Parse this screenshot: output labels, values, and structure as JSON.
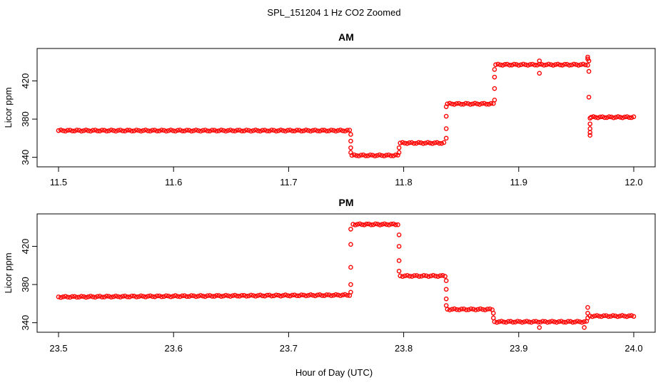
{
  "title": "SPL_151204  1 Hz CO2 Zoomed",
  "xlabel": "Hour of Day (UTC)",
  "colors": {
    "points": "#ff0000",
    "axis": "#000000"
  },
  "chart_data": [
    {
      "type": "scatter",
      "title": "AM",
      "ylabel": "Licor ppm",
      "xlim": [
        11.5,
        12.0
      ],
      "ylim": [
        336,
        448
      ],
      "xticks": [
        "11.5",
        "11.6",
        "11.7",
        "11.8",
        "11.9",
        "12.0"
      ],
      "yticks": [
        "340",
        "380",
        "420"
      ],
      "grid": false,
      "series": [
        {
          "segments": [
            {
              "x0": 11.5,
              "x1": 11.753,
              "y": 368
            },
            {
              "x0": 11.755,
              "x1": 11.795,
              "y": 342
            },
            {
              "x0": 11.797,
              "x1": 11.835,
              "y": 355
            },
            {
              "x0": 11.838,
              "x1": 11.878,
              "y": 396
            },
            {
              "x0": 11.88,
              "x1": 11.96,
              "y": 437
            },
            {
              "x0": 11.963,
              "x1": 12.0,
              "y": 382
            }
          ],
          "transitions": [
            {
              "x": 11.754,
              "y": [
                364,
                357,
                350,
                345
              ]
            },
            {
              "x": 11.796,
              "y": [
                345,
                350
              ]
            },
            {
              "x": 11.837,
              "y": [
                360,
                370,
                383,
                393
              ]
            },
            {
              "x": 11.879,
              "y": [
                400,
                412,
                424,
                432
              ]
            },
            {
              "x": 11.961,
              "y": [
                441,
                430,
                403
              ]
            },
            {
              "x": 11.962,
              "y": [
                381,
                375,
                370,
                366,
                363
              ]
            }
          ],
          "outliers": [
            {
              "x": 11.918,
              "y": 428
            },
            {
              "x": 11.918,
              "y": 441
            },
            {
              "x": 11.96,
              "y": 443
            },
            {
              "x": 11.96,
              "y": 445
            }
          ]
        }
      ]
    },
    {
      "type": "scatter",
      "title": "PM",
      "ylabel": "Licor ppm",
      "xlim": [
        23.5,
        24.0
      ],
      "ylim": [
        336,
        448
      ],
      "xticks": [
        "23.5",
        "23.6",
        "23.7",
        "23.8",
        "23.9",
        "24.0"
      ],
      "yticks": [
        "340",
        "380",
        "420"
      ],
      "grid": false,
      "series": [
        {
          "segments": [
            {
              "x0": 23.5,
              "x1": 23.753,
              "y0": 367,
              "y1": 369
            },
            {
              "x0": 23.756,
              "x1": 23.795,
              "y": 443
            },
            {
              "x0": 23.797,
              "x1": 23.836,
              "y": 389
            },
            {
              "x0": 23.838,
              "x1": 23.877,
              "y": 354
            },
            {
              "x0": 23.879,
              "x1": 23.959,
              "y": 341
            },
            {
              "x0": 23.962,
              "x1": 24.0,
              "y": 347
            }
          ],
          "transitions": [
            {
              "x": 23.754,
              "y": [
                372,
                380,
                398,
                422,
                438
              ]
            },
            {
              "x": 23.796,
              "y": [
                432,
                420,
                405,
                394
              ]
            },
            {
              "x": 23.837,
              "y": [
                384,
                375,
                365,
                358
              ]
            },
            {
              "x": 23.878,
              "y": [
                350,
                345
              ]
            },
            {
              "x": 23.96,
              "y": [
                345,
                350,
                356
              ]
            }
          ],
          "outliers": [
            {
              "x": 23.918,
              "y": 335
            },
            {
              "x": 23.957,
              "y": 335
            }
          ]
        }
      ]
    }
  ]
}
